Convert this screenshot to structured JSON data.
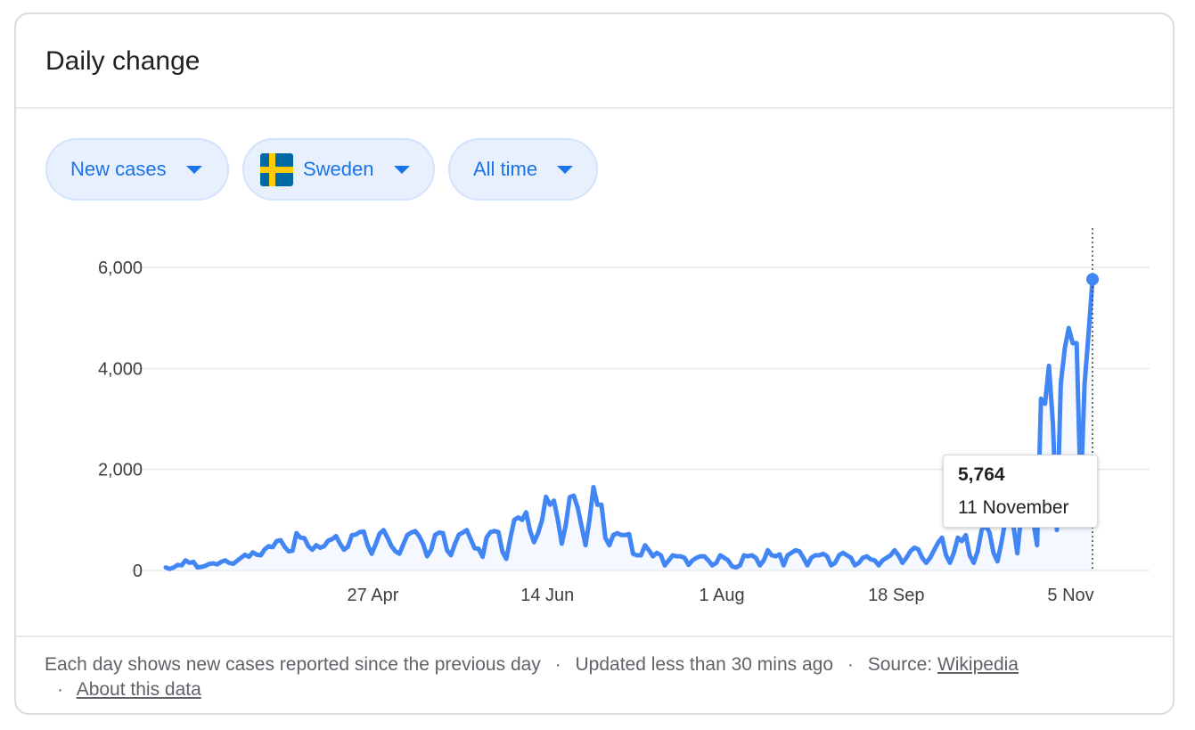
{
  "card": {
    "title": "Daily change"
  },
  "filters": {
    "metric": "New cases",
    "country": {
      "label": "Sweden",
      "flag_icon": "sweden-flag-icon",
      "flag_colors": {
        "blue": "#006aa7",
        "yellow": "#fecc00"
      }
    },
    "range": "All time"
  },
  "colors": {
    "line": "#4285f4",
    "accent": "#1a73e8",
    "grid": "#e8eaed"
  },
  "tooltip": {
    "value": "5,764",
    "date": "11 November"
  },
  "footer": {
    "description": "Each day shows new cases reported since the previous day",
    "updated": "Updated less than 30 mins ago",
    "source_label": "Source:",
    "source_link": "Wikipedia",
    "about_link": "About this data",
    "separator": "·"
  },
  "chart_data": {
    "type": "line",
    "x_start": "2020-03-01",
    "x_end": "2020-11-11",
    "ylim": [
      0,
      6000
    ],
    "yticks": [
      0,
      2000,
      4000,
      6000
    ],
    "ytick_labels": [
      "0",
      "2,000",
      "4,000",
      "6,000"
    ],
    "xtick_dates": [
      "2020-04-27",
      "2020-06-14",
      "2020-08-01",
      "2020-09-18",
      "2020-11-05"
    ],
    "xtick_labels": [
      "27 Apr",
      "14 Jun",
      "1 Aug",
      "18 Sep",
      "5 Nov"
    ],
    "grid": true,
    "highlight": {
      "date": "2020-11-11",
      "value": 5764
    },
    "values": [
      60,
      30,
      60,
      110,
      100,
      200,
      150,
      170,
      60,
      70,
      90,
      130,
      140,
      120,
      170,
      200,
      150,
      130,
      190,
      250,
      310,
      270,
      360,
      310,
      300,
      420,
      480,
      460,
      580,
      600,
      470,
      380,
      390,
      740,
      650,
      640,
      480,
      410,
      500,
      450,
      480,
      590,
      620,
      680,
      530,
      410,
      470,
      700,
      710,
      760,
      770,
      500,
      330,
      520,
      730,
      800,
      650,
      480,
      380,
      330,
      520,
      700,
      750,
      780,
      680,
      520,
      280,
      410,
      700,
      750,
      740,
      400,
      300,
      520,
      710,
      750,
      800,
      620,
      440,
      430,
      270,
      650,
      760,
      780,
      760,
      370,
      230,
      640,
      1000,
      1050,
      1000,
      1150,
      780,
      560,
      740,
      990,
      1460,
      1300,
      1380,
      1000,
      530,
      900,
      1450,
      1480,
      1250,
      870,
      500,
      1020,
      1650,
      1300,
      1300,
      650,
      500,
      700,
      740,
      700,
      700,
      720,
      330,
      300,
      300,
      500,
      400,
      280,
      350,
      300,
      100,
      200,
      300,
      280,
      280,
      250,
      110,
      200,
      250,
      280,
      280,
      200,
      100,
      150,
      300,
      250,
      200,
      80,
      60,
      100,
      300,
      280,
      300,
      250,
      100,
      200,
      400,
      300,
      280,
      320,
      100,
      300,
      350,
      400,
      380,
      250,
      100,
      250,
      300,
      300,
      330,
      280,
      100,
      150,
      300,
      350,
      300,
      250,
      100,
      150,
      250,
      280,
      220,
      200,
      100,
      200,
      250,
      300,
      400,
      300,
      150,
      250,
      380,
      450,
      420,
      250,
      150,
      250,
      400,
      550,
      650,
      300,
      150,
      350,
      650,
      580,
      700,
      300,
      150,
      380,
      800,
      900,
      750,
      350,
      180,
      550,
      1000,
      1100,
      900,
      340,
      1100,
      1500,
      950,
      1000,
      500,
      3400,
      3300,
      4050,
      2900,
      800,
      3700,
      4400,
      4800,
      4500,
      4500,
      1500,
      3700,
      4700,
      5764
    ]
  }
}
